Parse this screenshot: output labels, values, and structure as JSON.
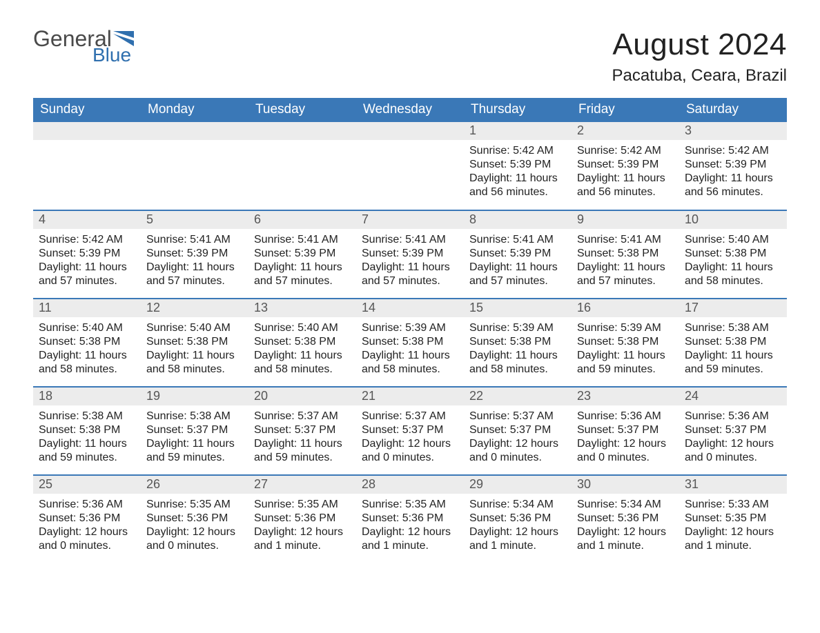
{
  "logo": {
    "top": "General",
    "bottom": "Blue",
    "brand_color": "#2f6fae",
    "text_color": "#4a4a4a"
  },
  "header": {
    "title": "August 2024",
    "location": "Pacatuba, Ceara, Brazil"
  },
  "styling": {
    "header_bg": "#3a78b7",
    "header_text": "#ffffff",
    "daynum_bg": "#ececec",
    "daynum_text": "#565656",
    "body_text": "#222222",
    "row_border": "#3a78b7",
    "page_bg": "#ffffff",
    "weekday_fontsize": 19,
    "daynum_fontsize": 18,
    "body_fontsize": 16,
    "title_fontsize": 44,
    "location_fontsize": 24
  },
  "weekdays": [
    "Sunday",
    "Monday",
    "Tuesday",
    "Wednesday",
    "Thursday",
    "Friday",
    "Saturday"
  ],
  "weeks": [
    [
      null,
      null,
      null,
      null,
      {
        "n": "1",
        "sr": "5:42 AM",
        "ss": "5:39 PM",
        "dl": "11 hours and 56 minutes."
      },
      {
        "n": "2",
        "sr": "5:42 AM",
        "ss": "5:39 PM",
        "dl": "11 hours and 56 minutes."
      },
      {
        "n": "3",
        "sr": "5:42 AM",
        "ss": "5:39 PM",
        "dl": "11 hours and 56 minutes."
      }
    ],
    [
      {
        "n": "4",
        "sr": "5:42 AM",
        "ss": "5:39 PM",
        "dl": "11 hours and 57 minutes."
      },
      {
        "n": "5",
        "sr": "5:41 AM",
        "ss": "5:39 PM",
        "dl": "11 hours and 57 minutes."
      },
      {
        "n": "6",
        "sr": "5:41 AM",
        "ss": "5:39 PM",
        "dl": "11 hours and 57 minutes."
      },
      {
        "n": "7",
        "sr": "5:41 AM",
        "ss": "5:39 PM",
        "dl": "11 hours and 57 minutes."
      },
      {
        "n": "8",
        "sr": "5:41 AM",
        "ss": "5:39 PM",
        "dl": "11 hours and 57 minutes."
      },
      {
        "n": "9",
        "sr": "5:41 AM",
        "ss": "5:38 PM",
        "dl": "11 hours and 57 minutes."
      },
      {
        "n": "10",
        "sr": "5:40 AM",
        "ss": "5:38 PM",
        "dl": "11 hours and 58 minutes."
      }
    ],
    [
      {
        "n": "11",
        "sr": "5:40 AM",
        "ss": "5:38 PM",
        "dl": "11 hours and 58 minutes."
      },
      {
        "n": "12",
        "sr": "5:40 AM",
        "ss": "5:38 PM",
        "dl": "11 hours and 58 minutes."
      },
      {
        "n": "13",
        "sr": "5:40 AM",
        "ss": "5:38 PM",
        "dl": "11 hours and 58 minutes."
      },
      {
        "n": "14",
        "sr": "5:39 AM",
        "ss": "5:38 PM",
        "dl": "11 hours and 58 minutes."
      },
      {
        "n": "15",
        "sr": "5:39 AM",
        "ss": "5:38 PM",
        "dl": "11 hours and 58 minutes."
      },
      {
        "n": "16",
        "sr": "5:39 AM",
        "ss": "5:38 PM",
        "dl": "11 hours and 59 minutes."
      },
      {
        "n": "17",
        "sr": "5:38 AM",
        "ss": "5:38 PM",
        "dl": "11 hours and 59 minutes."
      }
    ],
    [
      {
        "n": "18",
        "sr": "5:38 AM",
        "ss": "5:38 PM",
        "dl": "11 hours and 59 minutes."
      },
      {
        "n": "19",
        "sr": "5:38 AM",
        "ss": "5:37 PM",
        "dl": "11 hours and 59 minutes."
      },
      {
        "n": "20",
        "sr": "5:37 AM",
        "ss": "5:37 PM",
        "dl": "11 hours and 59 minutes."
      },
      {
        "n": "21",
        "sr": "5:37 AM",
        "ss": "5:37 PM",
        "dl": "12 hours and 0 minutes."
      },
      {
        "n": "22",
        "sr": "5:37 AM",
        "ss": "5:37 PM",
        "dl": "12 hours and 0 minutes."
      },
      {
        "n": "23",
        "sr": "5:36 AM",
        "ss": "5:37 PM",
        "dl": "12 hours and 0 minutes."
      },
      {
        "n": "24",
        "sr": "5:36 AM",
        "ss": "5:37 PM",
        "dl": "12 hours and 0 minutes."
      }
    ],
    [
      {
        "n": "25",
        "sr": "5:36 AM",
        "ss": "5:36 PM",
        "dl": "12 hours and 0 minutes."
      },
      {
        "n": "26",
        "sr": "5:35 AM",
        "ss": "5:36 PM",
        "dl": "12 hours and 0 minutes."
      },
      {
        "n": "27",
        "sr": "5:35 AM",
        "ss": "5:36 PM",
        "dl": "12 hours and 1 minute."
      },
      {
        "n": "28",
        "sr": "5:35 AM",
        "ss": "5:36 PM",
        "dl": "12 hours and 1 minute."
      },
      {
        "n": "29",
        "sr": "5:34 AM",
        "ss": "5:36 PM",
        "dl": "12 hours and 1 minute."
      },
      {
        "n": "30",
        "sr": "5:34 AM",
        "ss": "5:36 PM",
        "dl": "12 hours and 1 minute."
      },
      {
        "n": "31",
        "sr": "5:33 AM",
        "ss": "5:35 PM",
        "dl": "12 hours and 1 minute."
      }
    ]
  ],
  "labels": {
    "sunrise": "Sunrise:",
    "sunset": "Sunset:",
    "daylight": "Daylight:"
  }
}
